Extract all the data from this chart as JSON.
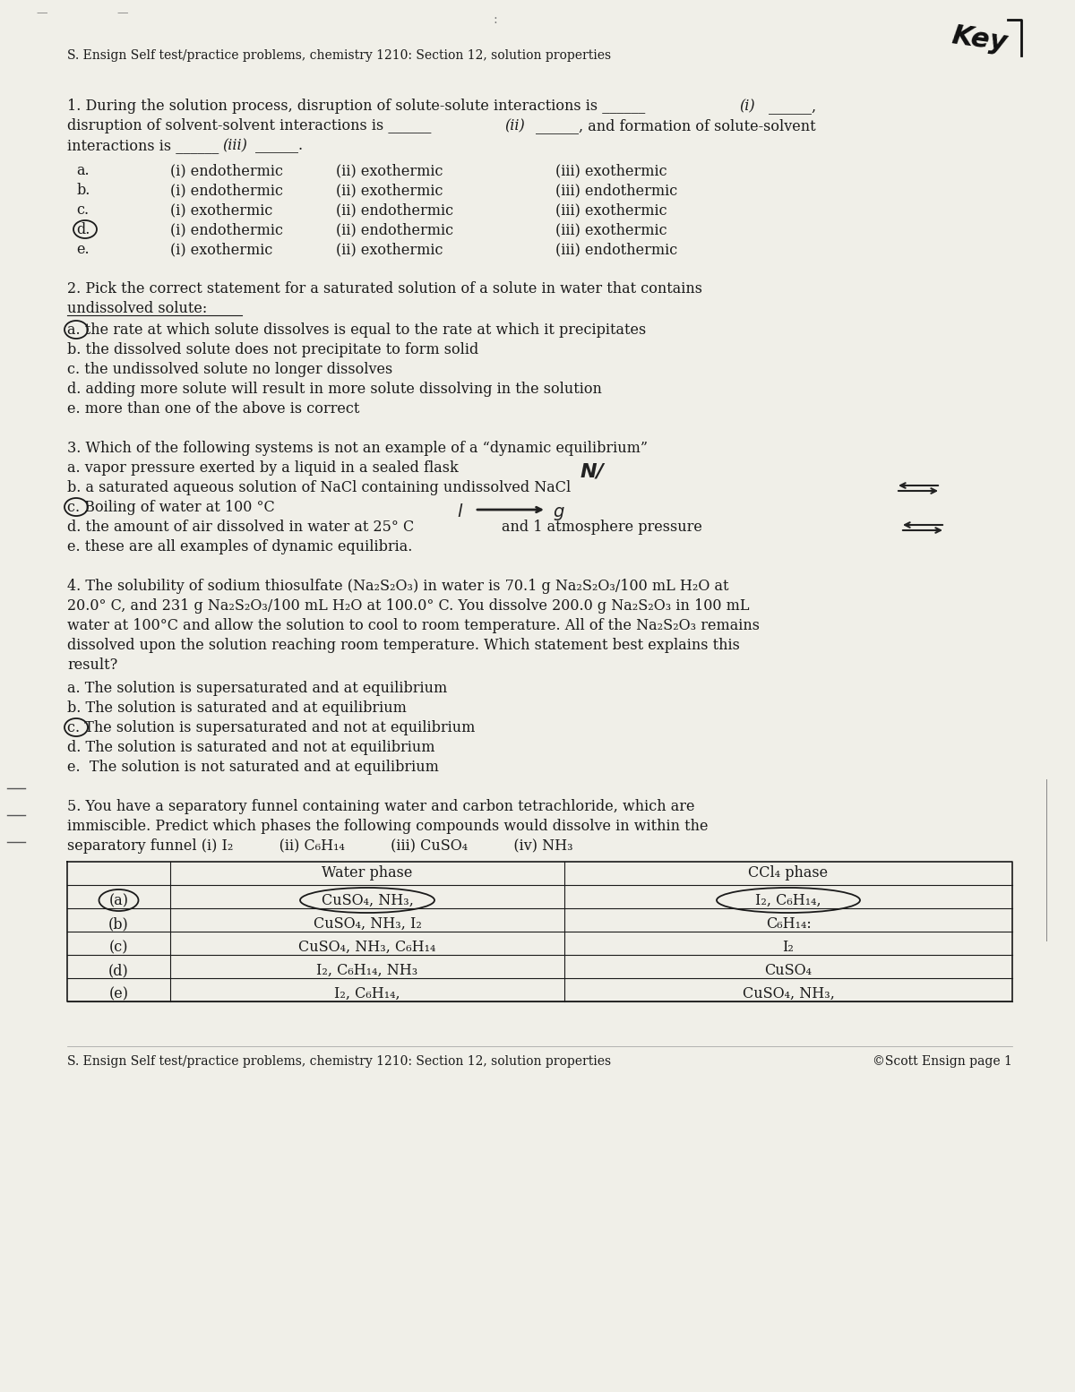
{
  "bg_color": "#f0efe8",
  "text_color": "#1a1a1a",
  "header": "S. Ensign Self test/practice problems, chemistry 1210: Section 12, solution properties",
  "footer_left": "S. Ensign Self test/practice problems, chemistry 1210: Section 12, solution properties",
  "footer_right": "©Scott Ensign page 1",
  "q1_line1": "1. During the solution process, disruption of solute-solute interactions is ______",
  "q1_i": "(i)",
  "q1_line1b": "______,",
  "q1_line2a": "disruption of solvent-solvent interactions is ______",
  "q1_ii": "(ii)",
  "q1_line2b": "______, and formation of solute-solvent",
  "q1_line3a": "interactions is ______",
  "q1_iii": "(iii)",
  "q1_line3b": "______.",
  "q1_choices": [
    [
      "a.",
      "(i) endothermic",
      "(ii) exothermic",
      "(iii) exothermic"
    ],
    [
      "b.",
      "(i) endothermic",
      "(ii) exothermic",
      "(iii) endothermic"
    ],
    [
      "c.",
      "(i) exothermic",
      "(ii) endothermic",
      "(iii) exothermic"
    ],
    [
      "d.",
      "(i) endothermic",
      "(ii) endothermic",
      "(iii) exothermic"
    ],
    [
      "e.",
      "(i) exothermic",
      "(ii) exothermic",
      "(iii) endothermic"
    ]
  ],
  "q2_line1": "2. Pick the correct statement for a saturated solution of a solute in water that contains",
  "q2_line2": "undissolved solute:",
  "q2_choices": [
    "a. the rate at which solute dissolves is equal to the rate at which it precipitates",
    "b. the dissolved solute does not precipitate to form solid",
    "c. the undissolved solute no longer dissolves",
    "d. adding more solute will result in more solute dissolving in the solution",
    "e. more than one of the above is correct"
  ],
  "q3_line1": "3. Which of the following systems is not an example of a “dynamic equilibrium”",
  "q3_choices": [
    "a. vapor pressure exerted by a liquid in a sealed flask",
    "b. a saturated aqueous solution of NaCl containing undissolved NaCl",
    "c. boiling of water at 100 °C",
    "d. the amount of air dissolved in water at 25° C and 1 atmosphere pressure",
    "e. these are all examples of dynamic equilibria."
  ],
  "q4_lines": [
    "4. The solubility of sodium thiosulfate (Na₂S₂O₃) in water is 70.1 g Na₂S₂O₃/100 mL H₂O at",
    "20.0° C, and 231 g Na₂S₂O₃/100 mL H₂O at 100.0° C. You dissolve 200.0 g Na₂S₂O₃ in 100 mL",
    "water at 100°C and allow the solution to cool to room temperature. All of the Na₂S₂O₃ remains",
    "dissolved upon the solution reaching room temperature. Which statement best explains this",
    "result?"
  ],
  "q4_choices": [
    "a. The solution is supersaturated and at equilibrium",
    "b. The solution is saturated and at equilibrium",
    "c. The solution is supersaturated and not at equilibrium",
    "d. The solution is saturated and not at equilibrium",
    "e.  The solution is not saturated and at equilibrium"
  ],
  "q5_lines": [
    "5. You have a separatory funnel containing water and carbon tetrachloride, which are",
    "immiscible. Predict which phases the following compounds would dissolve in within the",
    "separatory funnel (i) I₂          (ii) C₆H₁₄          (iii) CuSO₄          (iv) NH₃"
  ],
  "q5_rows": [
    [
      "(a)",
      "CuSO₄, NH₃,",
      "I₂, C₆H₁₄,"
    ],
    [
      "(b)",
      "CuSO₄, NH₃, I₂",
      "C₆H₁₄:"
    ],
    [
      "(c)",
      "CuSO₄, NH₃, C₆H₁₄",
      "I₂"
    ],
    [
      "(d)",
      "I₂, C₆H₁₄, NH₃",
      "CuSO₄"
    ],
    [
      "(e)",
      "I₂, C₆H₁₄,",
      "CuSO₄, NH₃,"
    ]
  ]
}
